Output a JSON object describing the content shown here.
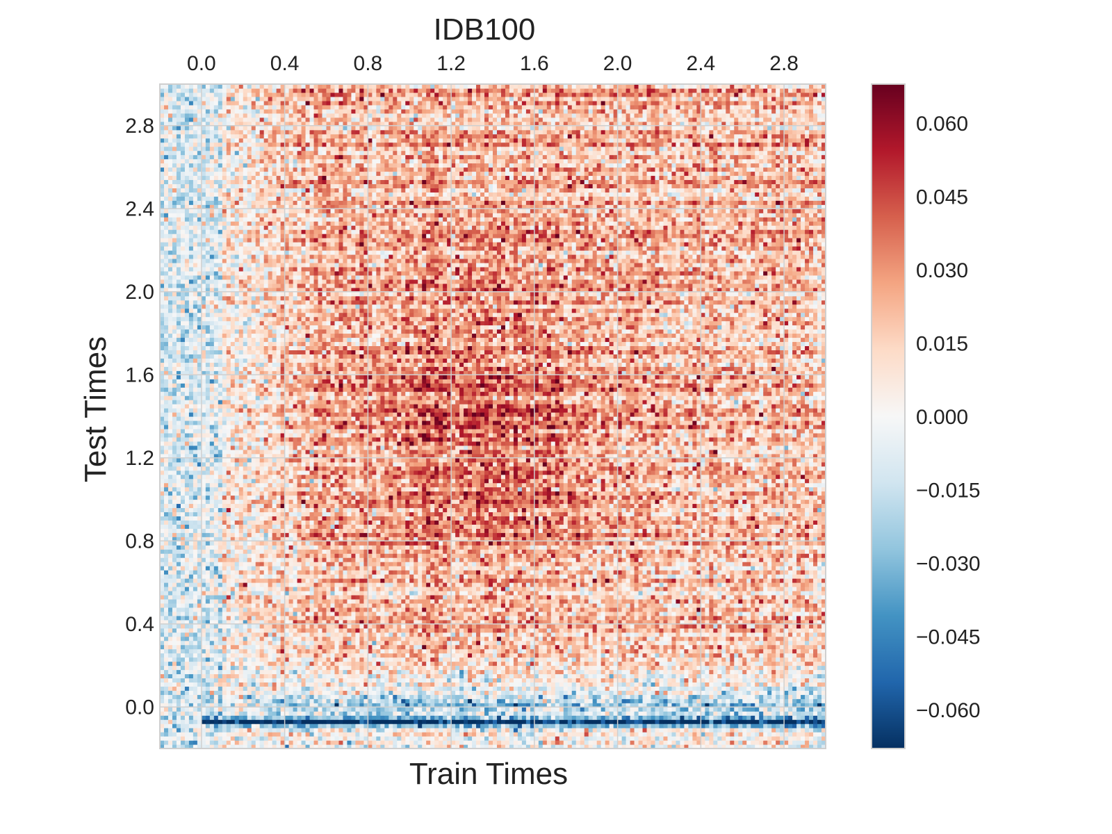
{
  "chart_data": {
    "type": "heatmap",
    "title": "IDB100",
    "xlabel": "Train Times",
    "ylabel": "Test Times",
    "xlim": [
      -0.2,
      3.0
    ],
    "ylim": [
      -0.2,
      3.0
    ],
    "x_ticks": [
      "0.0",
      "0.4",
      "0.8",
      "1.2",
      "1.6",
      "2.0",
      "2.4",
      "2.8"
    ],
    "x_tick_values": [
      0.0,
      0.4,
      0.8,
      1.2,
      1.6,
      2.0,
      2.4,
      2.8
    ],
    "y_ticks": [
      "0.0",
      "0.4",
      "0.8",
      "1.2",
      "1.6",
      "2.0",
      "2.4",
      "2.8"
    ],
    "y_tick_values": [
      0.0,
      0.4,
      0.8,
      1.2,
      1.6,
      2.0,
      2.4,
      2.8
    ],
    "x_axis_position": "top",
    "grid": true,
    "colormap": "RdBu_r",
    "value_range": [
      -0.068,
      0.068
    ],
    "colorbar_ticks": [
      "0.060",
      "0.045",
      "0.030",
      "0.015",
      "0.000",
      "−0.015",
      "−0.030",
      "−0.045",
      "−0.060"
    ],
    "colorbar_tick_values": [
      0.06,
      0.045,
      0.03,
      0.015,
      0.0,
      -0.015,
      -0.03,
      -0.045,
      -0.06
    ],
    "approximate_structure": {
      "grid_size": [
        160,
        160
      ],
      "strong_negative_band": {
        "test_time": -0.07,
        "value": -0.055
      },
      "weak_negative_band": {
        "test_time": 0.0,
        "value": -0.02
      },
      "early_train_negative_region": {
        "train_time_max": 0.1,
        "value": -0.01
      },
      "positive_plateau": {
        "train_time_min": 0.3,
        "test_time_min": 0.2,
        "value": 0.02
      },
      "peak_region": {
        "train_time": 1.3,
        "test_time": 1.35,
        "value": 0.045
      },
      "noise_std": 0.014
    }
  }
}
